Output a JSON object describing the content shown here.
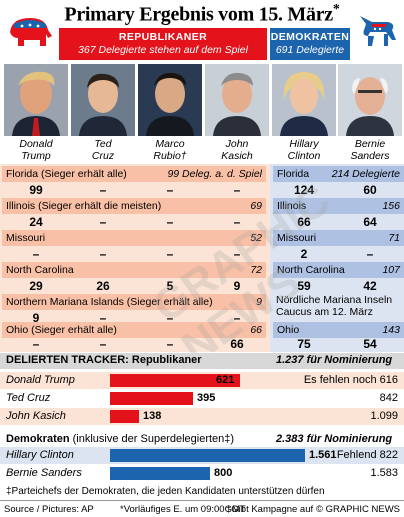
{
  "title": "Primary Ergebnis vom 15. März",
  "title_star": "*",
  "republicans": {
    "label": "Republikaner",
    "subtitle": "367 Delegierte stehen auf dem Spiel",
    "color": "#e3121b"
  },
  "democrats": {
    "label": "Demokraten",
    "subtitle": "691 Delegierte",
    "color": "#1d64ae"
  },
  "candidates": [
    {
      "name": "Donald\nTrump"
    },
    {
      "name": "Ted\nCruz"
    },
    {
      "name": "Marco\nRubio†"
    },
    {
      "name": "John\nKasich"
    },
    {
      "name": "Hillary\nClinton"
    },
    {
      "name": "Bernie\nSanders"
    }
  ],
  "states": [
    {
      "rep_name": "Florida (Sieger erhält alle)",
      "rep_note": "99 Deleg. a. d. Spiel",
      "rep_values": [
        "99",
        "–",
        "–",
        "–"
      ],
      "dem_name": "Florida",
      "dem_note": "214 Delegierte",
      "dem_values": [
        "124",
        "60"
      ]
    },
    {
      "rep_name": "Illinois (Sieger erhält die meisten)",
      "rep_note": "69",
      "rep_values": [
        "24",
        "–",
        "–",
        "–"
      ],
      "dem_name": "Illinois",
      "dem_note": "156",
      "dem_values": [
        "66",
        "64"
      ]
    },
    {
      "rep_name": "Missouri",
      "rep_note": "52",
      "rep_values": [
        "–",
        "–",
        "–",
        "–"
      ],
      "dem_name": "Missouri",
      "dem_note": "71",
      "dem_values": [
        "2",
        "–"
      ]
    },
    {
      "rep_name": "North Carolina",
      "rep_note": "72",
      "rep_values": [
        "29",
        "26",
        "5",
        "9"
      ],
      "dem_name": "North Carolina",
      "dem_note": "107",
      "dem_values": [
        "59",
        "42"
      ]
    },
    {
      "rep_name": "Northern Mariana Islands (Sieger erhält alle)",
      "rep_note": "9",
      "rep_values": [
        "9",
        "–",
        "–",
        "–"
      ],
      "dem_text": "Nördliche Mariana Inseln Caucus am 12. März"
    },
    {
      "rep_name": "Ohio (Sieger erhält alle)",
      "rep_note": "66",
      "rep_values": [
        "–",
        "–",
        "–",
        "66"
      ],
      "dem_name": "Ohio",
      "dem_note": "143",
      "dem_values": [
        "75",
        "54"
      ]
    }
  ],
  "tracker": {
    "title": "DELIERTEN TRACKER: Republikaner",
    "needed_note": "1.237 für Nominierung",
    "rep_rows": [
      {
        "name": "Donald Trump",
        "value": 621,
        "label": "621",
        "right": "Es fehlen noch 616"
      },
      {
        "name": "Ted Cruz",
        "value": 395,
        "label": "395",
        "right": "842"
      },
      {
        "name": "John Kasich",
        "value": 138,
        "label": "138",
        "right": "1.099"
      }
    ],
    "dem_title_bold": "Demokraten",
    "dem_title_rest": " (inklusive der Superdelegierten‡)",
    "dem_needed_note": "2.383 für Nominierung",
    "dem_rows": [
      {
        "name": "Hillary Clinton",
        "value": 1561,
        "label": "1.561",
        "right": "Fehlend 822"
      },
      {
        "name": "Bernie Sanders",
        "value": 800,
        "label": "800",
        "right": "1.583"
      }
    ]
  },
  "footnote": "‡Parteichefs der Demokraten, die jeden Kandidaten unterstützen dürfen",
  "footer": {
    "source": "Source / Pictures: AP",
    "note1": "*Vorläufiges E. um 09:00GMT",
    "note2": "†Gibt Kampagne auf",
    "credit": "© GRAPHIC NEWS"
  },
  "watermark": "GRAPHIC NEWS"
}
